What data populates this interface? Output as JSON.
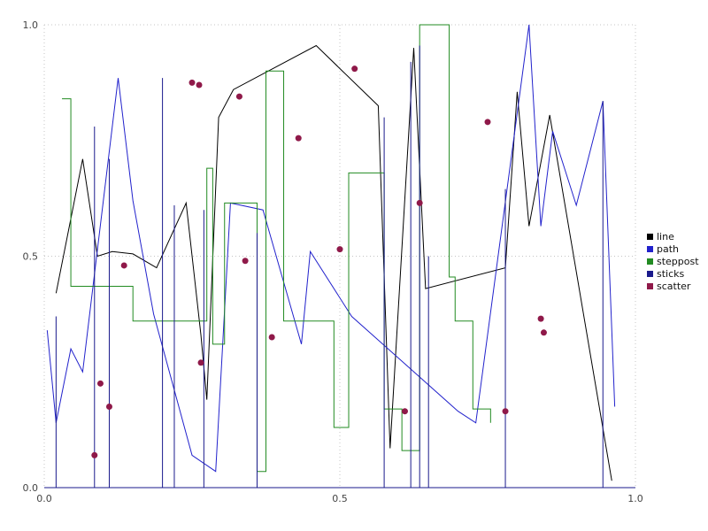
{
  "chart_data": {
    "type": "line",
    "title": "",
    "xlabel": "",
    "ylabel": "",
    "xlim": [
      0.0,
      1.0
    ],
    "ylim": [
      0.0,
      1.0
    ],
    "x_ticks": [
      "0.0",
      "0.5",
      "1.0"
    ],
    "x_tick_values": [
      0.0,
      0.5,
      1.0
    ],
    "y_ticks": [
      "0.0",
      "0.5",
      "1.0"
    ],
    "y_tick_values": [
      0.0,
      0.5,
      1.0
    ],
    "grid": "dotted",
    "legend_position": "right-outside",
    "series": [
      {
        "name": "line",
        "type": "line",
        "color": "#000000",
        "points": [
          [
            0.02,
            0.42
          ],
          [
            0.065,
            0.71
          ],
          [
            0.09,
            0.5
          ],
          [
            0.115,
            0.51
          ],
          [
            0.15,
            0.505
          ],
          [
            0.19,
            0.475
          ],
          [
            0.24,
            0.615
          ],
          [
            0.265,
            0.33
          ],
          [
            0.275,
            0.19
          ],
          [
            0.295,
            0.8
          ],
          [
            0.32,
            0.86
          ],
          [
            0.46,
            0.955
          ],
          [
            0.565,
            0.825
          ],
          [
            0.585,
            0.085
          ],
          [
            0.625,
            0.95
          ],
          [
            0.645,
            0.43
          ],
          [
            0.78,
            0.475
          ],
          [
            0.8,
            0.855
          ],
          [
            0.82,
            0.565
          ],
          [
            0.855,
            0.805
          ],
          [
            0.96,
            0.015
          ]
        ]
      },
      {
        "name": "path",
        "type": "line",
        "color": "#2222cc",
        "points": [
          [
            0.005,
            0.34
          ],
          [
            0.02,
            0.14
          ],
          [
            0.045,
            0.3
          ],
          [
            0.065,
            0.25
          ],
          [
            0.125,
            0.885
          ],
          [
            0.15,
            0.62
          ],
          [
            0.185,
            0.375
          ],
          [
            0.25,
            0.07
          ],
          [
            0.29,
            0.035
          ],
          [
            0.315,
            0.615
          ],
          [
            0.37,
            0.6
          ],
          [
            0.435,
            0.31
          ],
          [
            0.45,
            0.51
          ],
          [
            0.52,
            0.37
          ],
          [
            0.7,
            0.165
          ],
          [
            0.73,
            0.14
          ],
          [
            0.82,
            1.0
          ],
          [
            0.84,
            0.565
          ],
          [
            0.86,
            0.77
          ],
          [
            0.9,
            0.61
          ],
          [
            0.945,
            0.835
          ],
          [
            0.965,
            0.175
          ]
        ]
      },
      {
        "name": "steppost",
        "type": "step-post",
        "color": "#228b22",
        "points": [
          [
            0.03,
            0.84
          ],
          [
            0.045,
            0.435
          ],
          [
            0.15,
            0.36
          ],
          [
            0.275,
            0.69
          ],
          [
            0.285,
            0.31
          ],
          [
            0.305,
            0.615
          ],
          [
            0.36,
            0.035
          ],
          [
            0.375,
            0.9
          ],
          [
            0.405,
            0.36
          ],
          [
            0.49,
            0.13
          ],
          [
            0.515,
            0.68
          ],
          [
            0.575,
            0.17
          ],
          [
            0.605,
            0.08
          ],
          [
            0.635,
            1.0
          ],
          [
            0.685,
            0.455
          ],
          [
            0.695,
            0.36
          ],
          [
            0.725,
            0.17
          ],
          [
            0.755,
            0.14
          ]
        ]
      },
      {
        "name": "sticks",
        "type": "sticks",
        "color": "#1a1a8c",
        "points": [
          [
            0.02,
            0.37
          ],
          [
            0.085,
            0.78
          ],
          [
            0.11,
            0.71
          ],
          [
            0.2,
            0.885
          ],
          [
            0.22,
            0.61
          ],
          [
            0.27,
            0.6
          ],
          [
            0.36,
            0.55
          ],
          [
            0.575,
            0.8
          ],
          [
            0.62,
            0.92
          ],
          [
            0.635,
            0.955
          ],
          [
            0.65,
            0.5
          ],
          [
            0.78,
            0.645
          ],
          [
            0.945,
            0.835
          ]
        ]
      },
      {
        "name": "scatter",
        "type": "scatter",
        "color": "#8f1949",
        "points": [
          [
            0.085,
            0.07
          ],
          [
            0.095,
            0.225
          ],
          [
            0.11,
            0.175
          ],
          [
            0.135,
            0.48
          ],
          [
            0.25,
            0.875
          ],
          [
            0.262,
            0.87
          ],
          [
            0.265,
            0.27
          ],
          [
            0.33,
            0.845
          ],
          [
            0.34,
            0.49
          ],
          [
            0.385,
            0.325
          ],
          [
            0.43,
            0.755
          ],
          [
            0.5,
            0.515
          ],
          [
            0.525,
            0.905
          ],
          [
            0.61,
            0.165
          ],
          [
            0.635,
            0.615
          ],
          [
            0.75,
            0.79
          ],
          [
            0.78,
            0.165
          ],
          [
            0.84,
            0.365
          ],
          [
            0.845,
            0.335
          ]
        ]
      }
    ]
  }
}
